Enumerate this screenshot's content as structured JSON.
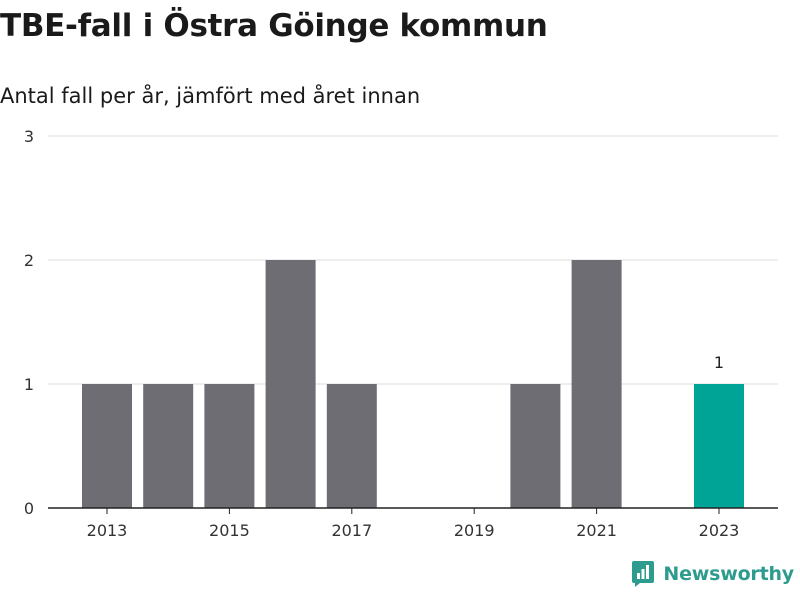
{
  "title": "TBE-fall i Östra Göinge kommun",
  "subtitle": "Antal fall per år, jämfört med året innan",
  "brand": "Newsworthy",
  "colors": {
    "bar": "#6e6d74",
    "highlight": "#00a497",
    "grid": "#dcdcdc",
    "axis": "#222222",
    "brand": "#2d9c8f"
  },
  "chart_data": {
    "type": "bar",
    "categories": [
      "2013",
      "2014",
      "2015",
      "2016",
      "2017",
      "2018",
      "2019",
      "2020",
      "2021",
      "2022",
      "2023"
    ],
    "values": [
      1,
      1,
      1,
      2,
      1,
      0,
      0,
      1,
      2,
      0,
      1
    ],
    "highlight_index": 10,
    "data_labels": [
      {
        "index": 10,
        "text": "1"
      }
    ],
    "x_tick_labels": [
      "2013",
      "2015",
      "2017",
      "2019",
      "2021",
      "2023"
    ],
    "y_ticks": [
      0,
      1,
      2,
      3
    ],
    "ylim": [
      0,
      3
    ],
    "grid": true,
    "xlabel": "",
    "ylabel": ""
  }
}
